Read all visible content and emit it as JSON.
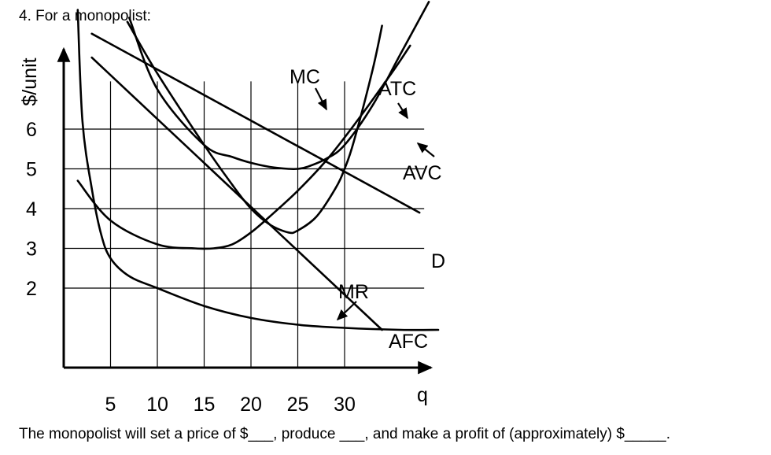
{
  "question": {
    "title": "4. For a monopolist:",
    "text": "The monopolist will set a price of $___, produce ___, and make a profit of (approximately) $_____."
  },
  "chart_data": {
    "type": "line",
    "ylabel": "$/unit",
    "xlabel": "q",
    "x_ticks": [
      5,
      10,
      15,
      20,
      25,
      30
    ],
    "y_ticks": [
      2,
      3,
      4,
      5,
      6
    ],
    "x_tick_labels": [
      "5",
      "10",
      "15",
      "20",
      "25",
      "30"
    ],
    "y_tick_labels": [
      "2",
      "3",
      "4",
      "5",
      "6"
    ],
    "grid": true,
    "series": [
      {
        "name": "MC",
        "points": [
          [
            6.8,
            8.7
          ],
          [
            10,
            7.4
          ],
          [
            15,
            5.6
          ],
          [
            18,
            4.6
          ],
          [
            20,
            4.0
          ],
          [
            22,
            3.6
          ],
          [
            24,
            3.4
          ],
          [
            25,
            3.45
          ],
          [
            27,
            3.8
          ],
          [
            29,
            4.5
          ],
          [
            30,
            5.0
          ],
          [
            31,
            5.7
          ],
          [
            33,
            7.5
          ],
          [
            34,
            8.6
          ]
        ]
      },
      {
        "name": "ATC",
        "points": [
          [
            7,
            8.8
          ],
          [
            10,
            7.0
          ],
          [
            15,
            5.6
          ],
          [
            18,
            5.3
          ],
          [
            20,
            5.15
          ],
          [
            22,
            5.05
          ],
          [
            24,
            5.0
          ],
          [
            25,
            5.0
          ],
          [
            26,
            5.05
          ],
          [
            28,
            5.25
          ],
          [
            30,
            5.6
          ],
          [
            33,
            6.6
          ],
          [
            36,
            7.9
          ],
          [
            39,
            9.2
          ]
        ]
      },
      {
        "name": "AVC",
        "points": [
          [
            1.5,
            4.7
          ],
          [
            5,
            3.7
          ],
          [
            10,
            3.1
          ],
          [
            14,
            3.0
          ],
          [
            16,
            3.0
          ],
          [
            18,
            3.1
          ],
          [
            20,
            3.4
          ],
          [
            22,
            3.8
          ],
          [
            25,
            4.45
          ],
          [
            28,
            5.2
          ],
          [
            31,
            6.1
          ],
          [
            35,
            7.4
          ],
          [
            37,
            8.1
          ]
        ]
      },
      {
        "name": "AFC",
        "points": [
          [
            1.5,
            9.0
          ],
          [
            2,
            6.2
          ],
          [
            3,
            4.5
          ],
          [
            4,
            3.35
          ],
          [
            5,
            2.75
          ],
          [
            7,
            2.3
          ],
          [
            10,
            2.0
          ],
          [
            15,
            1.55
          ],
          [
            20,
            1.25
          ],
          [
            25,
            1.08
          ],
          [
            30,
            1.0
          ],
          [
            36,
            0.95
          ],
          [
            40,
            0.95
          ]
        ]
      },
      {
        "name": "D",
        "points": [
          [
            3,
            8.4
          ],
          [
            38,
            3.9
          ]
        ]
      },
      {
        "name": "MR",
        "points": [
          [
            3,
            7.8
          ],
          [
            34,
            0.95
          ]
        ]
      }
    ],
    "annotations": [
      "MC",
      "ATC",
      "AVC",
      "D",
      "MR",
      "AFC"
    ]
  }
}
